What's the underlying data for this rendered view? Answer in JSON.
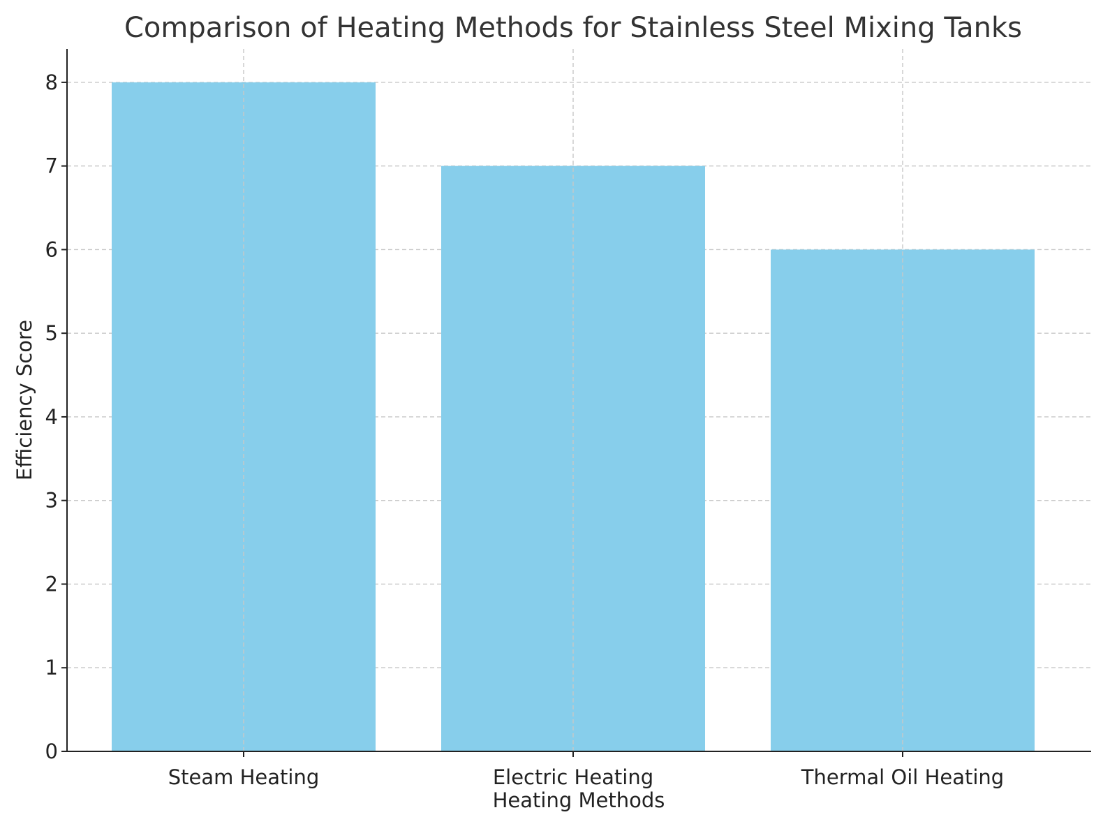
{
  "chart_data": {
    "type": "bar",
    "title": "Comparison of Heating Methods for Stainless Steel Mixing Tanks",
    "xlabel": "Heating Methods",
    "ylabel": "Efficiency Score",
    "categories": [
      "Steam Heating",
      "Electric Heating",
      "Thermal Oil Heating"
    ],
    "values": [
      8,
      7,
      6
    ],
    "ylim": [
      0,
      8.4
    ],
    "yticks": [
      0,
      1,
      2,
      3,
      4,
      5,
      6,
      7,
      8
    ],
    "grid": true,
    "bar_color": "#87CEEB"
  }
}
